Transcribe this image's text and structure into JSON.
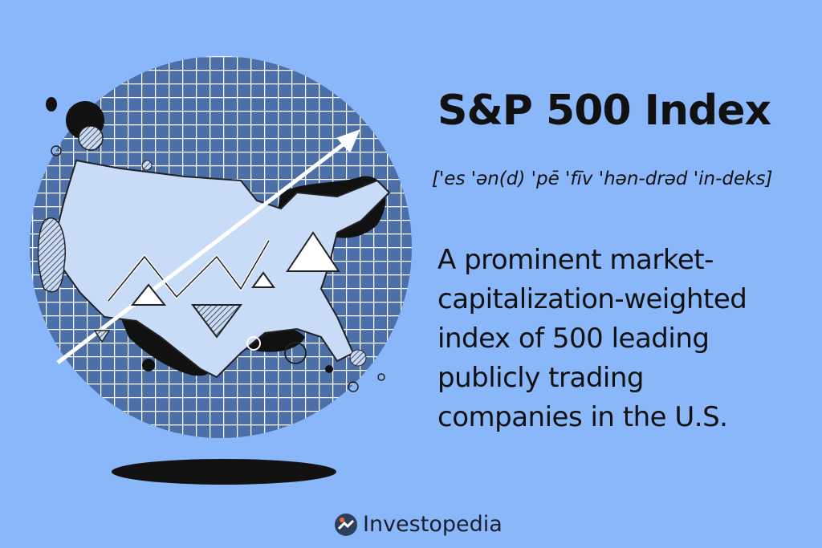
{
  "title": "S&P 500 Index",
  "pronunciation": "['es 'ən(d) 'pē 'fīv 'hən-drəd 'in-deks]",
  "definition": "A prominent market-capitalization-weighted index of 500 leading publicly trading companies in the U.S.",
  "brand": {
    "name": "Investopedia",
    "logo_color": "#2e3f5e",
    "logo_dot_color": "#f26b2a"
  },
  "colors": {
    "background": "#89b7f9",
    "grid_fill": "#4d6fa8",
    "map_fill": "#c9dcf7"
  },
  "illustration": {
    "icons": [
      "globe-grid-icon",
      "us-map-icon",
      "trend-arrow-icon"
    ]
  }
}
